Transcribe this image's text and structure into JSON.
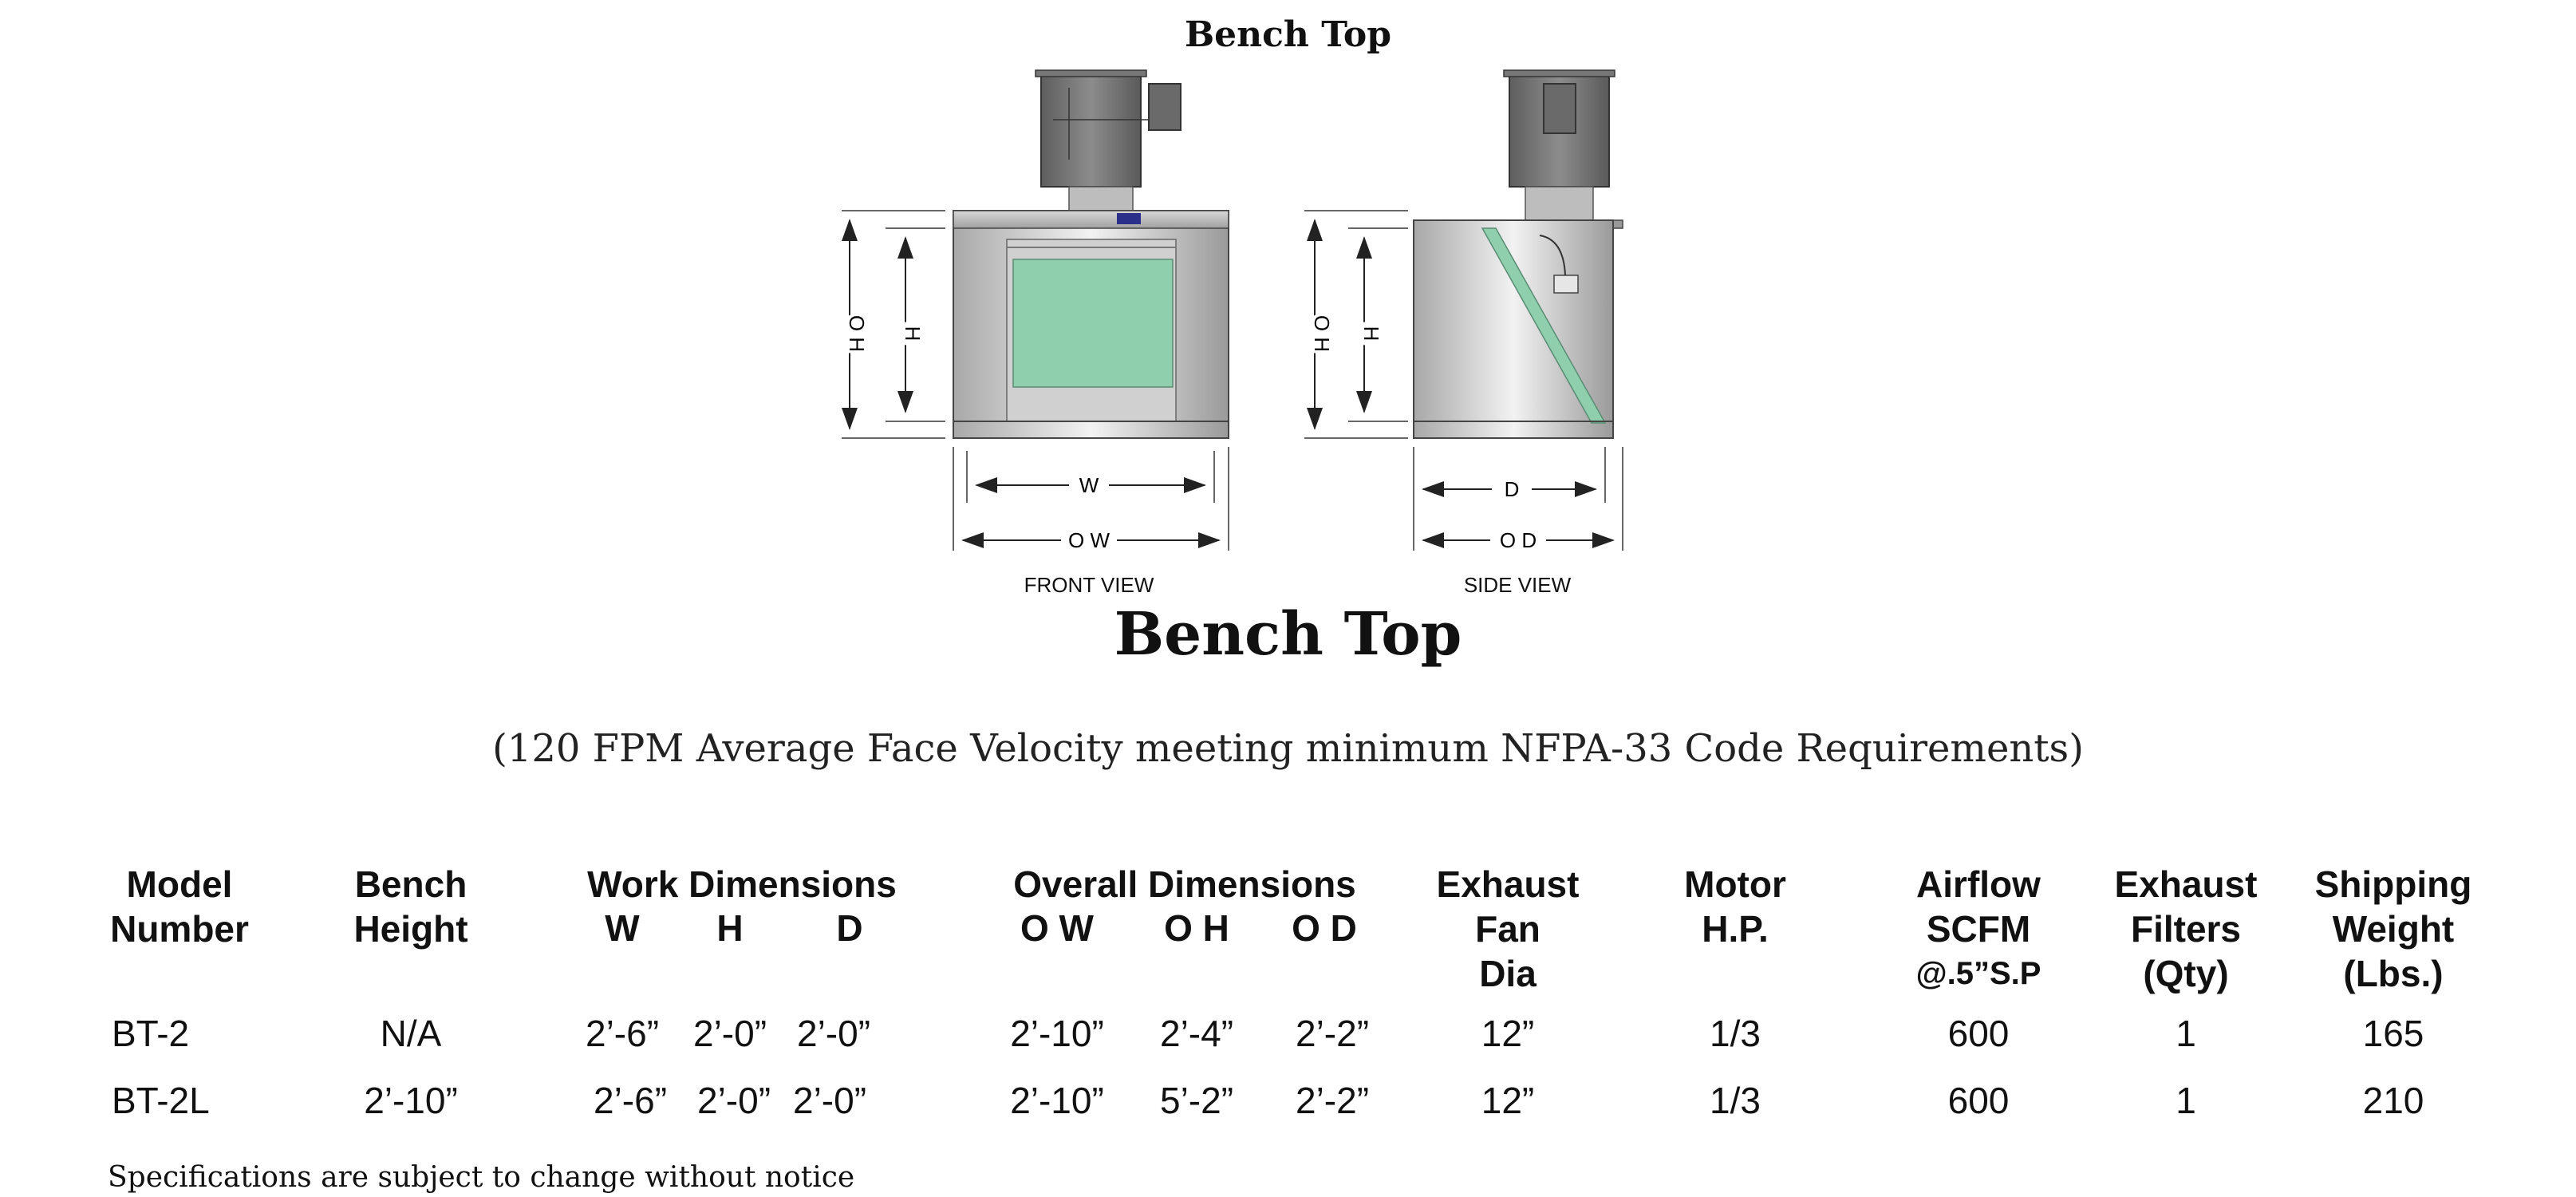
{
  "drawing": {
    "title": "Bench Top",
    "front_view_label": "FRONT VIEW",
    "side_view_label": "SIDE VIEW",
    "dims": {
      "oh": "O H",
      "h": "H",
      "w": "W",
      "ow": "O W",
      "d": "D",
      "od": "O D"
    }
  },
  "title": "Bench Top",
  "subtitle": "(120 FPM Average Face Velocity meeting minimum NFPA-33 Code Requirements)",
  "table": {
    "headers": {
      "model": [
        "Model",
        "Number"
      ],
      "bench": [
        "Bench",
        "Height"
      ],
      "work": "Work Dimensions",
      "work_sub": [
        "W",
        "H",
        "D"
      ],
      "overall": "Overall Dimensions",
      "overall_sub": [
        "O W",
        "O H",
        "O D"
      ],
      "fan": [
        "Exhaust",
        "Fan",
        "Dia"
      ],
      "motor": [
        "Motor",
        "H.P."
      ],
      "airflow": [
        "Airflow",
        "SCFM",
        "@.5”S.P"
      ],
      "filters": [
        "Exhaust",
        "Filters",
        "(Qty)"
      ],
      "weight": [
        "Shipping",
        "Weight",
        "(Lbs.)"
      ]
    },
    "rows": [
      {
        "model": "BT-2",
        "bench": "N/A",
        "w": "2’-6”",
        "h": "2’-0”",
        "d": "2’-0”",
        "ow": "2’-10”",
        "oh": "2’-4”",
        "od": "2’-2”",
        "fan": "12”",
        "motor": "1/3",
        "airflow": "600",
        "filters": "1",
        "weight": "165"
      },
      {
        "model": "BT-2L",
        "bench": "2’-10”",
        "w": "2’-6”",
        "h": "2’-0”",
        "d": "2’-0”",
        "ow": "2’-10”",
        "oh": "5’-2”",
        "od": "2’-2”",
        "fan": "12”",
        "motor": "1/3",
        "airflow": "600",
        "filters": "1",
        "weight": "210"
      }
    ]
  },
  "footnote": "Specifications are subject to change without notice",
  "colors": {
    "filter_green": "#8fcfae",
    "steel": "#c9c9c9",
    "fan_dark": "#6e6e6e",
    "accent_blue": "#2a2f8a"
  }
}
